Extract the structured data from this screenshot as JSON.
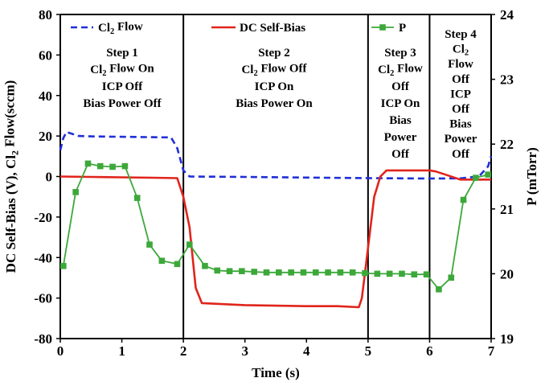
{
  "chart_data": {
    "type": "line",
    "xlabel": "Time (s)",
    "ylabel_left": "DC Self-Bias (V), Cl₂ Flow(sccm)",
    "ylabel_right": "P (mTorr)",
    "xlim": [
      0,
      7
    ],
    "x_ticks": [
      0,
      1,
      2,
      3,
      4,
      5,
      6,
      7
    ],
    "ylim_left": [
      -80,
      80
    ],
    "y_ticks_left": [
      -80,
      -60,
      -40,
      -20,
      0,
      20,
      40,
      60,
      80
    ],
    "ylim_right": [
      19,
      24
    ],
    "y_ticks_right": [
      19,
      20,
      21,
      22,
      23,
      24
    ],
    "step_boundaries": [
      2,
      5,
      6
    ],
    "series": [
      {
        "name": "Cl₂ Flow",
        "axis": "left",
        "color": "#1f2fd6",
        "style": "dashed",
        "x": [
          0,
          0.05,
          0.1,
          0.2,
          0.3,
          0.5,
          1.0,
          1.5,
          1.8,
          1.9,
          2.0,
          2.1,
          3.0,
          4.0,
          5.0,
          6.0,
          6.5,
          6.8,
          6.95,
          7.0
        ],
        "y": [
          13,
          19,
          22,
          21,
          20,
          19.8,
          19.6,
          19.4,
          19.3,
          14,
          3,
          0,
          -0.2,
          -0.5,
          -0.8,
          -1,
          -0.9,
          0,
          5,
          10
        ]
      },
      {
        "name": "DC Self-Bias",
        "axis": "left",
        "color": "#e0241b",
        "style": "solid",
        "x": [
          0,
          0.5,
          1.0,
          1.5,
          1.9,
          2.0,
          2.1,
          2.2,
          2.3,
          3.0,
          4.0,
          4.5,
          4.85,
          4.9,
          5.0,
          5.1,
          5.2,
          5.3,
          6.0,
          6.1,
          6.3,
          6.5,
          6.8,
          7.0
        ],
        "y": [
          0,
          -0.2,
          -0.4,
          -0.6,
          -0.8,
          -10,
          -25,
          -55,
          -62.5,
          -63.5,
          -64,
          -64,
          -64.5,
          -60,
          -35,
          -10,
          0,
          3,
          3,
          2.5,
          0.5,
          -1.5,
          -1.5,
          -1.5
        ]
      },
      {
        "name": "P",
        "axis": "right",
        "color": "#3da83a",
        "style": "solid-square",
        "x": [
          0.05,
          0.25,
          0.45,
          0.65,
          0.85,
          1.05,
          1.25,
          1.45,
          1.65,
          1.9,
          2.1,
          2.35,
          2.55,
          2.75,
          2.95,
          3.15,
          3.35,
          3.55,
          3.75,
          3.95,
          4.15,
          4.35,
          4.55,
          4.75,
          4.95,
          5.15,
          5.35,
          5.55,
          5.75,
          5.95,
          6.15,
          6.35,
          6.55,
          6.75,
          6.95
        ],
        "y": [
          20.12,
          21.26,
          21.7,
          21.66,
          21.65,
          21.66,
          21.17,
          20.45,
          20.2,
          20.15,
          20.45,
          20.12,
          20.05,
          20.04,
          20.04,
          20.03,
          20.02,
          20.02,
          20.02,
          20.02,
          20.02,
          20.02,
          20.02,
          20.02,
          20.01,
          20.0,
          20.0,
          20.0,
          19.99,
          19.99,
          19.76,
          19.94,
          21.14,
          21.48,
          21.53
        ]
      }
    ],
    "annotations": [
      {
        "lines": [
          "Step 1",
          "Cl₂ Flow On",
          "ICP Off",
          "Bias Power Off"
        ]
      },
      {
        "lines": [
          "Step 2",
          "Cl₂ Flow Off",
          "ICP On",
          "Bias Power On"
        ]
      },
      {
        "lines": [
          "Step 3",
          "Cl₂ Flow",
          "Off",
          "ICP On",
          "Bias",
          "Power",
          "Off"
        ]
      },
      {
        "lines": [
          "Step 4",
          "Cl₂",
          "Flow",
          "Off",
          "ICP",
          "Off",
          "Bias",
          "Power",
          "Off"
        ]
      }
    ]
  }
}
